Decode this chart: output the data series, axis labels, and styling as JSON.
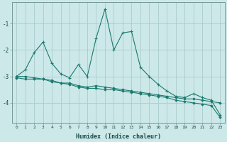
{
  "xlabel": "Humidex (Indice chaleur)",
  "background_color": "#cce8e8",
  "grid_color": "#aacccc",
  "line_color": "#1a7a6e",
  "xlim": [
    -0.5,
    23.5
  ],
  "ylim": [
    -4.75,
    -0.2
  ],
  "yticks": [
    -4,
    -3,
    -2,
    -1
  ],
  "xticks": [
    0,
    1,
    2,
    3,
    4,
    5,
    6,
    7,
    8,
    9,
    10,
    11,
    12,
    13,
    14,
    15,
    16,
    17,
    18,
    19,
    20,
    21,
    22,
    23
  ],
  "series1_x": [
    0,
    1,
    2,
    3,
    4,
    5,
    6,
    7,
    8,
    9,
    10,
    11,
    12,
    13,
    14,
    15,
    16,
    17,
    18,
    19,
    20,
    21,
    22,
    23
  ],
  "series1_y": [
    -3.0,
    -2.75,
    -2.1,
    -1.7,
    -2.5,
    -2.9,
    -3.05,
    -2.55,
    -3.0,
    -1.55,
    -0.45,
    -2.0,
    -1.35,
    -1.3,
    -2.65,
    -3.0,
    -3.3,
    -3.55,
    -3.75,
    -3.8,
    -3.65,
    -3.8,
    -3.9,
    -4.45
  ],
  "series2_x": [
    0,
    1,
    2,
    3,
    4,
    5,
    6,
    7,
    8,
    9,
    10,
    11,
    12,
    13,
    14,
    15,
    16,
    17,
    18,
    19,
    20,
    21,
    22,
    23
  ],
  "series2_y": [
    -3.05,
    -3.1,
    -3.1,
    -3.1,
    -3.15,
    -3.25,
    -3.25,
    -3.35,
    -3.4,
    -3.35,
    -3.4,
    -3.45,
    -3.5,
    -3.55,
    -3.6,
    -3.65,
    -3.7,
    -3.75,
    -3.8,
    -3.85,
    -3.85,
    -3.9,
    -3.95,
    -4.0
  ],
  "series3_x": [
    0,
    1,
    2,
    3,
    4,
    5,
    6,
    7,
    8,
    9,
    10,
    11,
    12,
    13,
    14,
    15,
    16,
    17,
    18,
    19,
    20,
    21,
    22,
    23
  ],
  "series3_y": [
    -3.0,
    -3.0,
    -3.05,
    -3.1,
    -3.2,
    -3.25,
    -3.3,
    -3.4,
    -3.45,
    -3.45,
    -3.5,
    -3.5,
    -3.55,
    -3.6,
    -3.65,
    -3.7,
    -3.75,
    -3.8,
    -3.9,
    -3.95,
    -4.0,
    -4.05,
    -4.1,
    -4.55
  ]
}
